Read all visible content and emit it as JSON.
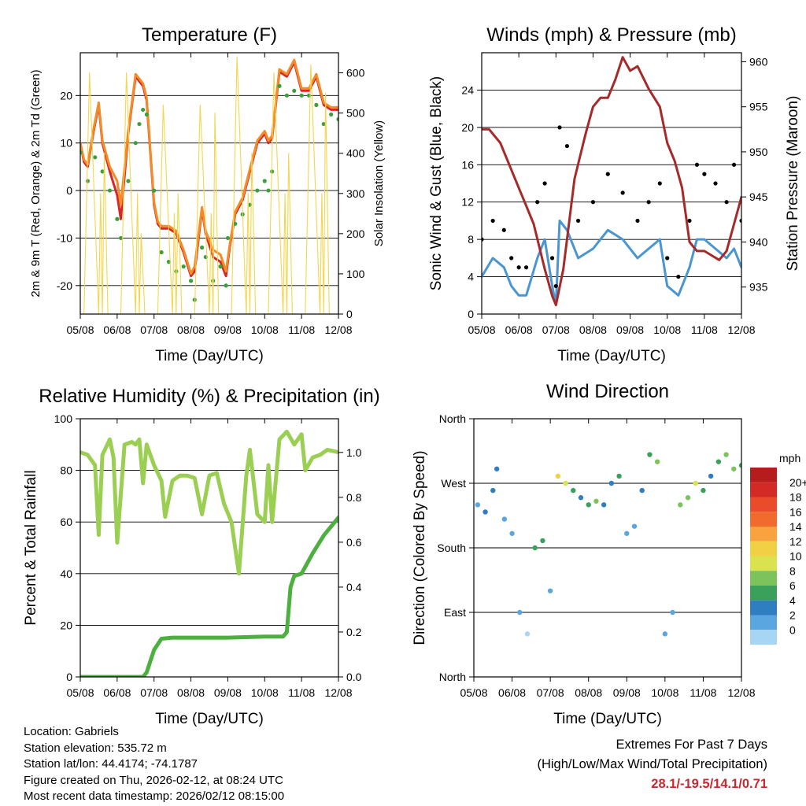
{
  "chart_data": [
    {
      "type": "line",
      "title": "Temperature (F)",
      "xlabel": "Time (Day/UTC)",
      "ylabel": "2m & 9m T (Red, Orange) & 2m Td (Green)",
      "y2label": "Solar Insolation (Yellow)",
      "x_ticks": [
        "05/08",
        "06/08",
        "07/08",
        "08/08",
        "09/08",
        "10/08",
        "11/08",
        "12/08"
      ],
      "xlim": [
        0,
        7
      ],
      "ylim": [
        -26,
        29
      ],
      "y_ticks": [
        -20,
        -10,
        0,
        10,
        20
      ],
      "y2lim": [
        0,
        650
      ],
      "y2_ticks": [
        0,
        100,
        200,
        300,
        400,
        500,
        600
      ],
      "series": [
        {
          "name": "2m T",
          "color": "#d62728",
          "x": [
            0,
            0.1,
            0.2,
            0.35,
            0.5,
            0.6,
            0.8,
            1.0,
            1.1,
            1.3,
            1.5,
            1.7,
            1.8,
            2.0,
            2.1,
            2.2,
            2.4,
            2.6,
            2.8,
            3.0,
            3.1,
            3.3,
            3.4,
            3.6,
            3.8,
            3.95,
            4.05,
            4.2,
            4.4,
            4.6,
            4.8,
            5.0,
            5.1,
            5.2,
            5.4,
            5.6,
            5.8,
            6.0,
            6.2,
            6.4,
            6.6,
            6.8,
            7.0
          ],
          "values": [
            10,
            6,
            5,
            12,
            18,
            10,
            4,
            -1,
            -6,
            12,
            24,
            22,
            19,
            -3,
            -7,
            -8,
            -8,
            -9,
            -13,
            -18,
            -17,
            -4,
            -9,
            -14,
            -15,
            -18,
            -12,
            -5,
            -2,
            4,
            10,
            12,
            10,
            11,
            25,
            24,
            27,
            21,
            21,
            24,
            18,
            17,
            17
          ]
        },
        {
          "name": "9m T",
          "color": "#f28c28",
          "x": [
            0,
            0.1,
            0.2,
            0.35,
            0.5,
            0.6,
            0.8,
            1.0,
            1.1,
            1.3,
            1.5,
            1.7,
            1.8,
            2.0,
            2.1,
            2.2,
            2.4,
            2.6,
            2.8,
            3.0,
            3.1,
            3.3,
            3.4,
            3.6,
            3.8,
            3.95,
            4.05,
            4.2,
            4.4,
            4.6,
            4.8,
            5.0,
            5.1,
            5.2,
            5.4,
            5.6,
            5.8,
            6.0,
            6.2,
            6.4,
            6.6,
            6.8,
            7.0
          ],
          "values": [
            10,
            6.5,
            5.5,
            12.5,
            18.5,
            10.5,
            5,
            2,
            -3,
            12.5,
            24.5,
            22.5,
            19.5,
            -2.5,
            -6.5,
            -7.5,
            -7.5,
            -8.5,
            -12.5,
            -17.5,
            -16,
            -3.5,
            -8.5,
            -12.5,
            -13.5,
            -17,
            -11.5,
            -4.5,
            -1.5,
            4.5,
            10.5,
            12.5,
            10.5,
            11.5,
            25.5,
            24.5,
            27.5,
            21.5,
            21.5,
            24.5,
            18.5,
            17.5,
            17.5
          ]
        },
        {
          "name": "2m Td",
          "color": "#3aa13a",
          "style": "dots",
          "x": [
            0,
            0.2,
            0.4,
            0.6,
            0.8,
            1.0,
            1.1,
            1.3,
            1.5,
            1.6,
            1.7,
            1.8,
            2.0,
            2.2,
            2.4,
            2.6,
            2.8,
            3.0,
            3.1,
            3.3,
            3.4,
            3.6,
            3.8,
            3.95,
            4.0,
            4.2,
            4.4,
            4.6,
            4.8,
            5.0,
            5.1,
            5.2,
            5.4,
            5.6,
            5.8,
            6.0,
            6.2,
            6.4,
            6.6,
            6.8,
            7.0
          ],
          "values": [
            8,
            2,
            7,
            4,
            0,
            -6,
            -10,
            2,
            10,
            14,
            17,
            16,
            0,
            -13,
            -15,
            -17,
            -16,
            -19,
            -23,
            -12,
            -14,
            -19,
            -16,
            -20,
            -10,
            -7,
            -5,
            -3,
            0,
            2,
            0,
            4,
            22,
            20,
            21,
            20,
            20,
            18,
            14,
            16,
            15
          ]
        },
        {
          "name": "Solar Insolation",
          "color": "#f5d54c",
          "axis": "right",
          "x": [
            0.1,
            0.25,
            0.5,
            0.55,
            0.6,
            0.65,
            0.75,
            1.1,
            1.25,
            1.5,
            1.55,
            1.6,
            1.65,
            1.75,
            2.1,
            2.25,
            2.5,
            2.55,
            2.6,
            2.65,
            2.75,
            3.1,
            3.25,
            3.5,
            3.55,
            3.6,
            3.65,
            3.75,
            4.1,
            4.25,
            4.5,
            4.55,
            4.6,
            4.65,
            4.75,
            5.1,
            5.25,
            5.5,
            5.55,
            5.6,
            5.65,
            5.75,
            6.1,
            6.25,
            6.5,
            6.55,
            6.6,
            6.65,
            6.75
          ],
          "values": [
            0,
            600,
            0,
            300,
            0,
            400,
            0,
            0,
            600,
            0,
            300,
            0,
            200,
            0,
            0,
            520,
            0,
            250,
            0,
            300,
            0,
            0,
            520,
            0,
            250,
            0,
            500,
            0,
            0,
            640,
            0,
            300,
            0,
            400,
            0,
            0,
            600,
            0,
            300,
            0,
            400,
            0,
            0,
            620,
            0,
            300,
            0,
            550,
            0
          ]
        }
      ]
    },
    {
      "type": "line",
      "title": "Winds (mph) & Pressure (mb)",
      "xlabel": "Time (Day/UTC)",
      "ylabel": "Sonic Wind & Gust (Blue, Black)",
      "y2label": "Station Pressure (Maroon)",
      "x_ticks": [
        "05/08",
        "06/08",
        "07/08",
        "08/08",
        "09/08",
        "10/08",
        "11/08",
        "12/08"
      ],
      "xlim": [
        0,
        7
      ],
      "ylim": [
        0,
        28
      ],
      "y_ticks": [
        0,
        4,
        8,
        12,
        16,
        20,
        24
      ],
      "y2lim": [
        932,
        961
      ],
      "y2_ticks": [
        935,
        940,
        945,
        950,
        955,
        960
      ],
      "series": [
        {
          "name": "Sonic Wind",
          "color": "#4a96d2",
          "x": [
            0,
            0.3,
            0.6,
            0.8,
            1.0,
            1.2,
            1.5,
            1.7,
            1.9,
            2.0,
            2.1,
            2.3,
            2.6,
            3.0,
            3.4,
            3.8,
            4.2,
            4.5,
            4.8,
            5.0,
            5.3,
            5.6,
            5.8,
            6.0,
            6.3,
            6.6,
            6.8,
            7.0
          ],
          "values": [
            4,
            6,
            5,
            3,
            2,
            2,
            6,
            8,
            3,
            1,
            10,
            9,
            6,
            7,
            9,
            8,
            6,
            7,
            8,
            3,
            2,
            5,
            8,
            8,
            7,
            6,
            7,
            5
          ]
        },
        {
          "name": "Gust",
          "color": "#000000",
          "style": "dots",
          "x": [
            0,
            0.3,
            0.6,
            0.8,
            1.0,
            1.2,
            1.5,
            1.7,
            1.9,
            2.0,
            2.1,
            2.3,
            2.6,
            3.0,
            3.4,
            3.8,
            4.2,
            4.5,
            4.8,
            5.0,
            5.3,
            5.6,
            5.8,
            6.0,
            6.3,
            6.6,
            6.8,
            7.0
          ],
          "values": [
            8,
            10,
            9,
            6,
            5,
            5,
            12,
            14,
            6,
            3,
            20,
            18,
            10,
            12,
            15,
            13,
            10,
            12,
            14,
            6,
            4,
            10,
            16,
            15,
            14,
            12,
            16,
            10
          ]
        },
        {
          "name": "Station Pressure",
          "color": "#a52a2a",
          "axis": "right",
          "x": [
            0,
            0.2,
            0.5,
            0.8,
            1.0,
            1.2,
            1.4,
            1.7,
            1.9,
            2.0,
            2.2,
            2.5,
            2.8,
            3.0,
            3.2,
            3.4,
            3.6,
            3.8,
            4.0,
            4.2,
            4.5,
            4.8,
            5.0,
            5.2,
            5.4,
            5.5,
            5.6,
            5.8,
            6.0,
            6.2,
            6.4,
            6.6,
            6.8,
            7.0
          ],
          "values": [
            952.5,
            952.5,
            951,
            948,
            946,
            944,
            942,
            937,
            934,
            933,
            937,
            947,
            952,
            955,
            956,
            956,
            958,
            960.5,
            959,
            959.5,
            957,
            955,
            951,
            949,
            946,
            943,
            940,
            939,
            939,
            938.5,
            938,
            939,
            942,
            945
          ]
        }
      ]
    },
    {
      "type": "line",
      "title": "Relative Humidity (%) & Precipitation (in)",
      "xlabel": "Time (Day/UTC)",
      "ylabel": "Percent & Total Rainfall",
      "x_ticks": [
        "05/08",
        "06/08",
        "07/08",
        "08/08",
        "09/08",
        "10/08",
        "11/08",
        "12/08"
      ],
      "xlim": [
        0,
        7
      ],
      "ylim": [
        0,
        100
      ],
      "y_ticks": [
        0,
        20,
        40,
        60,
        80,
        100
      ],
      "y2lim": [
        0,
        1.15
      ],
      "y2_ticks": [
        "0.0",
        "0.2",
        "0.4",
        "0.6",
        "0.8",
        "1.0"
      ],
      "series": [
        {
          "name": "Relative Humidity",
          "color": "#9bcf53",
          "x": [
            0,
            0.2,
            0.4,
            0.5,
            0.6,
            0.8,
            0.9,
            1.0,
            1.2,
            1.4,
            1.5,
            1.6,
            1.7,
            1.8,
            2.0,
            2.2,
            2.3,
            2.5,
            2.7,
            2.9,
            3.1,
            3.3,
            3.5,
            3.7,
            3.9,
            4.1,
            4.3,
            4.5,
            4.6,
            4.8,
            5.0,
            5.1,
            5.2,
            5.4,
            5.6,
            5.8,
            6.0,
            6.1,
            6.3,
            6.5,
            6.7,
            7.0
          ],
          "values": [
            87,
            86,
            82,
            55,
            86,
            92,
            85,
            52,
            90,
            91,
            90,
            92,
            75,
            90,
            82,
            76,
            62,
            76,
            78,
            78,
            77,
            63,
            78,
            79,
            67,
            60,
            40,
            78,
            88,
            63,
            60,
            82,
            60,
            92,
            95,
            90,
            94,
            80,
            85,
            86,
            88,
            87
          ]
        },
        {
          "name": "Total Rainfall",
          "color": "#4caf3f",
          "axis": "right",
          "x": [
            0,
            1.7,
            1.8,
            2.0,
            2.2,
            2.5,
            3.0,
            4.0,
            5.0,
            5.5,
            5.6,
            5.7,
            5.8,
            6.0,
            6.3,
            6.6,
            7.0
          ],
          "values": [
            0,
            0,
            0.02,
            0.12,
            0.17,
            0.175,
            0.175,
            0.175,
            0.18,
            0.18,
            0.2,
            0.4,
            0.45,
            0.46,
            0.55,
            0.63,
            0.71
          ]
        }
      ]
    },
    {
      "type": "scatter",
      "title": "Wind Direction",
      "xlabel": "Time (Day/UTC)",
      "ylabel": "Direction (Colored By Speed)",
      "x_ticks": [
        "05/08",
        "06/08",
        "07/08",
        "08/08",
        "09/08",
        "10/08",
        "11/08",
        "12/08"
      ],
      "xlim": [
        0,
        7
      ],
      "ylim": [
        0,
        360
      ],
      "y_ticks": [
        "North",
        "East",
        "South",
        "West",
        "North"
      ],
      "colorbar": {
        "title": "mph",
        "labels": [
          "20+",
          "18",
          "16",
          "14",
          "12",
          "10",
          "8",
          "6",
          "4",
          "2",
          "0"
        ],
        "colors": [
          "#b71c1c",
          "#d42a26",
          "#e94b2b",
          "#f26b2e",
          "#f8a33d",
          "#f2d045",
          "#d9e350",
          "#7bc35a",
          "#3aa05a",
          "#2f7ec0",
          "#5aa6e0",
          "#a7d6f5"
        ]
      },
      "x": [
        0.1,
        0.3,
        0.5,
        0.6,
        0.8,
        1.0,
        1.2,
        1.4,
        1.6,
        1.8,
        2.0,
        2.2,
        2.4,
        2.6,
        2.8,
        3.0,
        3.2,
        3.4,
        3.6,
        3.8,
        4.0,
        4.2,
        4.4,
        4.6,
        4.8,
        5.0,
        5.2,
        5.4,
        5.6,
        5.8,
        6.0,
        6.2,
        6.4,
        6.6,
        6.8,
        7.0
      ],
      "values": [
        240,
        230,
        260,
        290,
        220,
        200,
        90,
        60,
        180,
        190,
        120,
        280,
        270,
        260,
        250,
        240,
        245,
        240,
        270,
        280,
        200,
        210,
        260,
        310,
        300,
        60,
        90,
        240,
        250,
        270,
        260,
        280,
        300,
        310,
        290,
        295
      ],
      "speeds": [
        3,
        4,
        5,
        4,
        3,
        2,
        2,
        1,
        7,
        6,
        2,
        12,
        10,
        6,
        5,
        6,
        8,
        5,
        4,
        7,
        3,
        2,
        4,
        6,
        8,
        2,
        3,
        9,
        8,
        10,
        6,
        5,
        7,
        9,
        8,
        6
      ]
    }
  ],
  "footer": {
    "location": "Location: Gabriels",
    "elevation": "Station elevation: 535.72 m",
    "latlon": "Station lat/lon: 44.4174; -74.1787",
    "created": "Figure created on Thu, 2026-02-12, at 08:24 UTC",
    "timestamp": "Most recent data timestamp: 2026/02/12 08:15:00",
    "extremes_title": "Extremes For Past 7 Days",
    "extremes_subtitle": "(High/Low/Max Wind/Total Precipitation)",
    "extremes_values": "28.1/-19.5/14.1/0.71"
  }
}
